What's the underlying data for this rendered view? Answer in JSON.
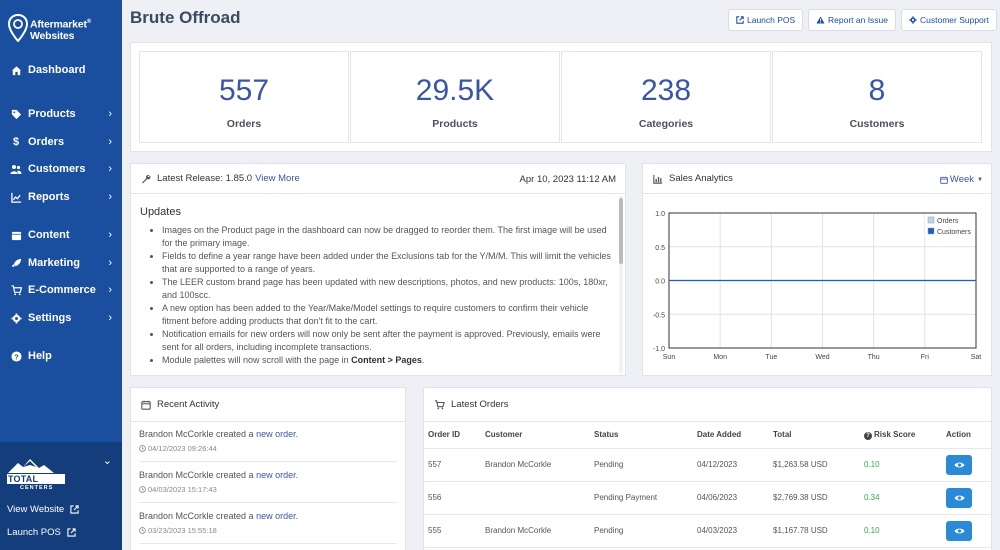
{
  "app": {
    "logo_text_line1": "Aftermarket",
    "logo_text_line2": "Websites",
    "logo_reg": "®"
  },
  "sidebar": {
    "items": [
      {
        "label": "Dashboard",
        "icon": "home-icon"
      },
      {
        "label": "Products",
        "icon": "tag-icon"
      },
      {
        "label": "Orders",
        "icon": "dollar-icon"
      },
      {
        "label": "Customers",
        "icon": "users-icon"
      },
      {
        "label": "Reports",
        "icon": "chart-line-icon"
      },
      {
        "label": "Content",
        "icon": "calendar-icon"
      },
      {
        "label": "Marketing",
        "icon": "rocket-icon"
      },
      {
        "label": "E-Commerce",
        "icon": "cart-icon"
      },
      {
        "label": "Settings",
        "icon": "gear-icon"
      },
      {
        "label": "Help",
        "icon": "question-icon"
      }
    ],
    "store_logo_text": "TOTAL TRUCK",
    "store_logo_sub": "CENTERS",
    "view_website": "View Website",
    "launch_pos": "Launch POS"
  },
  "header": {
    "title": "Brute Offroad",
    "launch_pos": "Launch POS",
    "report_issue": "Report an Issue",
    "customer_support": "Customer Support"
  },
  "stats": [
    {
      "value": "557",
      "label": "Orders"
    },
    {
      "value": "29.5K",
      "label": "Products"
    },
    {
      "value": "238",
      "label": "Categories"
    },
    {
      "value": "8",
      "label": "Customers"
    }
  ],
  "release": {
    "prefix": "Latest Release: 1.85.0",
    "link": "View More",
    "date": "Apr 10, 2023 11:12 AM",
    "heading": "Updates",
    "items": [
      "Images on the Product page in the dashboard can now be dragged to reorder them. The first image will be used for the primary image.",
      "Fields to define a year range have been added under the Exclusions tab for the Y/M/M. This will limit the vehicles that are supported to a range of years.",
      "The LEER custom brand page has been updated with new descriptions, photos, and new products: 100s, 180xr, and 100scc.",
      "A new option has been added to the Year/Make/Model settings to require customers to confirm their vehicle fitment before adding products that don't fit to the cart.",
      "Notification emails for new orders will now only be sent after the payment is approved. Previously, emails were sent for all orders, including incomplete transactions.",
      "Module palettes will now scroll with the page in "
    ],
    "last_item_bold": "Content > Pages",
    "last_item_end": "."
  },
  "analytics": {
    "title": "Sales Analytics",
    "period": "Week",
    "legend_orders": "Orders",
    "legend_customers": "Customers",
    "orders_color": "#b9d6ef",
    "customers_color": "#1a5fc2"
  },
  "chart_data": {
    "type": "line",
    "categories": [
      "Sun",
      "Mon",
      "Tue",
      "Wed",
      "Thu",
      "Fri",
      "Sat"
    ],
    "series": [
      {
        "name": "Orders",
        "values": [
          0,
          0,
          0,
          0,
          0,
          0,
          0
        ]
      },
      {
        "name": "Customers",
        "values": [
          0,
          0,
          0,
          0,
          0,
          0,
          0
        ]
      }
    ],
    "yticks": [
      "1.0",
      "0.5",
      "0.0",
      "-0.5",
      "-1.0"
    ],
    "ylim": [
      -1.0,
      1.0
    ],
    "grid": true,
    "legend": "top-right"
  },
  "activity": {
    "title": "Recent Activity",
    "items": [
      {
        "who": "Brandon McCorkle created a ",
        "link": "new order",
        "end": ".",
        "time": "04/12/2023 09:26:44"
      },
      {
        "who": "Brandon McCorkle created a ",
        "link": "new order",
        "end": ".",
        "time": "04/03/2023 15:17:43"
      },
      {
        "who": "Brandon McCorkle created a ",
        "link": "new order",
        "end": ".",
        "time": "03/23/2023 15:55:18"
      }
    ]
  },
  "orders": {
    "title": "Latest Orders",
    "columns": [
      "Order ID",
      "Customer",
      "Status",
      "Date Added",
      "Total",
      "Risk Score",
      "Action"
    ],
    "rows": [
      {
        "id": "557",
        "customer": "Brandon McCorkle",
        "status": "Pending",
        "date": "04/12/2023",
        "total": "$1,263.58 USD",
        "risk": "0.10"
      },
      {
        "id": "556",
        "customer": "",
        "status": "Pending Payment",
        "date": "04/06/2023",
        "total": "$2,769.38 USD",
        "risk": "0.34"
      },
      {
        "id": "555",
        "customer": "Brandon McCorkle",
        "status": "Pending",
        "date": "04/03/2023",
        "total": "$1,167.78 USD",
        "risk": "0.10"
      }
    ]
  }
}
